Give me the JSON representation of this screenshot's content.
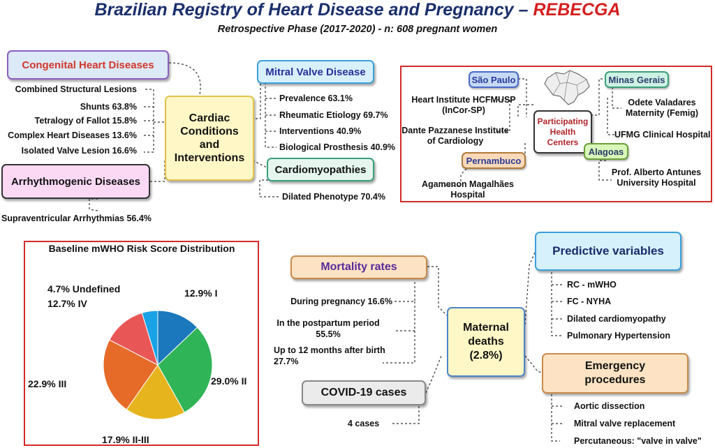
{
  "title": {
    "main": "Brazilian Registry of Heart Disease and Pregnancy – ",
    "accent": "REBECGA"
  },
  "subtitle": "Retrospective Phase (2017-2020) - n: 608 pregnant women",
  "colors": {
    "title": "#1a2f6b",
    "accent": "#d41e1e",
    "frame": "#d42a2a"
  },
  "cardiac": {
    "center": "Cardiac Conditions and Interventions",
    "congenital": {
      "title": "Congenital Heart Diseases",
      "items": [
        "Combined Structural Lesions",
        "Shunts 63.8%",
        "Tetralogy of Fallot 15.8%",
        "Complex Heart Diseases 13.6%",
        "Isolated Valve Lesion 16.6%"
      ]
    },
    "arrhythmogenic": {
      "title": "Arrhythmogenic Diseases",
      "items": [
        "Supraventricular Arrhythmias 56.4%"
      ]
    },
    "mitral": {
      "title": "Mitral Valve Disease",
      "items": [
        "Prevalence 63.1%",
        "Rheumatic Etiology 69.7%",
        "Interventions 40.9%",
        "Biological Prosthesis 40.9%"
      ]
    },
    "cardiomyopathies": {
      "title": "Cardiomyopathies",
      "items": [
        "Dilated Phenotype 70.4%"
      ]
    }
  },
  "centers": {
    "center": "Participating Health Centers",
    "sao_paulo": {
      "state": "São Paulo",
      "items": [
        "Heart Institute HCFMUSP (InCor-SP)",
        "Dante Pazzanese Institute of Cardiology"
      ]
    },
    "pernambuco": {
      "state": "Pernambuco",
      "items": [
        "Agamenon Magalhães Hospital"
      ]
    },
    "minas_gerais": {
      "state": "Minas Gerais",
      "items": [
        "Odete Valadares Maternity (Femig)",
        "UFMG Clinical Hospital"
      ]
    },
    "alagoas": {
      "state": "Alagoas",
      "items": [
        "Prof. Alberto Antunes University Hospital"
      ]
    }
  },
  "chart_data": {
    "type": "pie",
    "title": "Baseline mWHO Risk Score Distribution",
    "slices": [
      {
        "label": "I",
        "value": 12.9,
        "text": "12.9% I",
        "color": "#1b78bc"
      },
      {
        "label": "II",
        "value": 29.0,
        "text": "29.0% II",
        "color": "#2fb457"
      },
      {
        "label": "II-III",
        "value": 17.9,
        "text": "17.9% II-III",
        "color": "#e6b41d"
      },
      {
        "label": "III",
        "value": 22.9,
        "text": "22.9% III",
        "color": "#e66a28"
      },
      {
        "label": "IV",
        "value": 12.7,
        "text": "12.7% IV",
        "color": "#e85656"
      },
      {
        "label": "Undefined",
        "value": 4.7,
        "text": "4.7% Undefined",
        "color": "#19a3e6"
      }
    ]
  },
  "maternal": {
    "center": "Maternal deaths (2.8%)",
    "mortality": {
      "title": "Mortality rates",
      "items": [
        "During pregnancy 16.6%",
        "In the postpartum period 55.5%",
        "Up to 12 months after birth 27.7%"
      ]
    },
    "covid": {
      "title": "COVID-19 cases",
      "items": [
        "4 cases"
      ]
    },
    "predictive": {
      "title": "Predictive variables",
      "items": [
        "RC - mWHO",
        "FC - NYHA",
        "Dilated cardiomyopathy",
        "Pulmonary Hypertension"
      ]
    },
    "emergency": {
      "title": "Emergency procedures",
      "items": [
        "Aortic dissection",
        "Mitral valve replacement",
        "Percutaneous: \"valve in valve\""
      ]
    }
  }
}
